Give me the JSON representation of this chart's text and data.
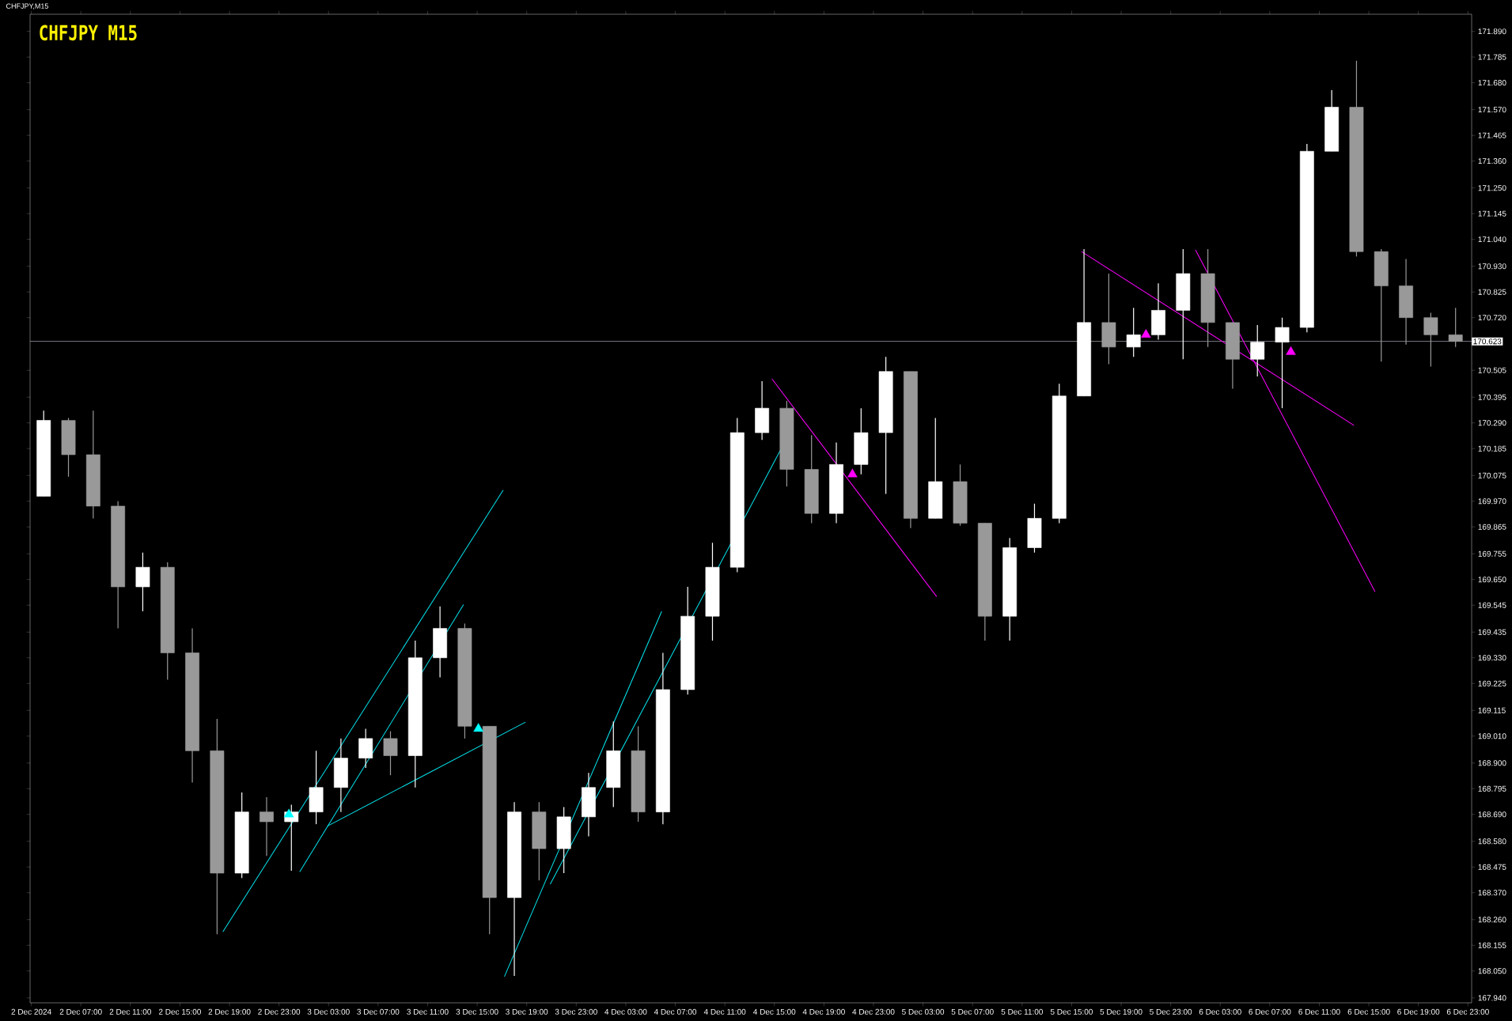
{
  "chart_data": {
    "type": "candlestick",
    "title": "CHFJPY M15",
    "annotations": [
      "CHFJPY,M15"
    ],
    "colors": [
      "#ffffff",
      "#999999",
      "#999999",
      "#999999",
      "#ffffff",
      "#999999",
      "#999999",
      "#999999",
      "#ffffff",
      "#999999",
      "#ffffff",
      "#ffffff",
      "#ffffff",
      "#ffffff",
      "#999999",
      "#ffffff",
      "#ffffff",
      "#999999",
      "#999999",
      "#ffffff",
      "#999999",
      "#ffffff",
      "#ffffff",
      "#ffffff",
      "#999999",
      "#ffffff",
      "#ffffff",
      "#ffffff",
      "#ffffff",
      "#ffffff",
      "#999999",
      "#999999",
      "#ffffff",
      "#ffffff",
      "#ffffff",
      "#999999",
      "#ffffff",
      "#999999",
      "#999999",
      "#ffffff",
      "#ffffff",
      "#ffffff",
      "#ffffff",
      "#999999",
      "#ffffff",
      "#ffffff",
      "#ffffff",
      "#999999",
      "#999999",
      "#ffffff",
      "#ffffff",
      "#ffffff",
      "#ffffff",
      "#999999",
      "#999999",
      "#999999",
      "#999999",
      "#999999"
    ],
    "x": [
      "2024-12-02T04:00",
      "2024-12-02T06:00",
      "2024-12-02T08:00",
      "2024-12-02T10:00",
      "2024-12-02T12:00",
      "2024-12-02T14:00",
      "2024-12-02T16:00",
      "2024-12-02T18:00",
      "2024-12-02T20:00",
      "2024-12-02T22:00",
      "2024-12-03T00:00",
      "2024-12-03T02:00",
      "2024-12-03T04:00",
      "2024-12-03T06:00",
      "2024-12-03T08:00",
      "2024-12-03T10:00",
      "2024-12-03T12:00",
      "2024-12-03T14:00",
      "2024-12-03T16:00",
      "2024-12-03T18:00",
      "2024-12-03T20:00",
      "2024-12-03T22:00",
      "2024-12-04T00:00",
      "2024-12-04T02:00",
      "2024-12-04T04:00",
      "2024-12-04T06:00",
      "2024-12-04T08:00",
      "2024-12-04T10:00",
      "2024-12-04T12:00",
      "2024-12-04T14:00",
      "2024-12-04T16:00",
      "2024-12-04T18:00",
      "2024-12-04T20:00",
      "2024-12-04T22:00",
      "2024-12-05T00:00",
      "2024-12-05T02:00",
      "2024-12-05T04:00",
      "2024-12-05T06:00",
      "2024-12-05T08:00",
      "2024-12-05T10:00",
      "2024-12-05T12:00",
      "2024-12-05T14:00",
      "2024-12-05T16:00",
      "2024-12-05T18:00",
      "2024-12-05T20:00",
      "2024-12-05T22:00",
      "2024-12-06T00:00",
      "2024-12-06T02:00",
      "2024-12-06T04:00",
      "2024-12-06T06:00",
      "2024-12-06T08:00",
      "2024-12-06T10:00",
      "2024-12-06T12:00",
      "2024-12-06T14:00",
      "2024-12-06T16:00",
      "2024-12-06T18:00",
      "2024-12-06T20:00",
      "2024-12-06T22:00"
    ],
    "ohlc": [
      [
        169.99,
        170.34,
        169.99,
        170.3
      ],
      [
        170.3,
        170.31,
        170.07,
        170.16
      ],
      [
        170.16,
        170.34,
        169.9,
        169.95
      ],
      [
        169.95,
        169.97,
        169.45,
        169.62
      ],
      [
        169.62,
        169.76,
        169.52,
        169.7
      ],
      [
        169.7,
        169.72,
        169.24,
        169.35
      ],
      [
        169.35,
        169.45,
        168.82,
        168.95
      ],
      [
        168.95,
        169.08,
        168.2,
        168.45
      ],
      [
        168.45,
        168.78,
        168.43,
        168.7
      ],
      [
        168.7,
        168.76,
        168.52,
        168.66
      ],
      [
        168.66,
        168.73,
        168.46,
        168.7
      ],
      [
        168.7,
        168.95,
        168.65,
        168.8
      ],
      [
        168.8,
        169.0,
        168.7,
        168.92
      ],
      [
        168.92,
        169.04,
        168.88,
        169.0
      ],
      [
        169.0,
        169.03,
        168.85,
        168.93
      ],
      [
        168.93,
        169.4,
        168.8,
        169.33
      ],
      [
        169.33,
        169.54,
        169.25,
        169.45
      ],
      [
        169.45,
        169.47,
        169.0,
        169.05
      ],
      [
        169.05,
        169.05,
        168.2,
        168.35
      ],
      [
        168.35,
        168.74,
        168.03,
        168.7
      ],
      [
        168.7,
        168.74,
        168.42,
        168.55
      ],
      [
        168.55,
        168.72,
        168.45,
        168.68
      ],
      [
        168.68,
        168.86,
        168.6,
        168.8
      ],
      [
        168.8,
        169.07,
        168.72,
        168.95
      ],
      [
        168.95,
        169.05,
        168.66,
        168.7
      ],
      [
        168.7,
        169.35,
        168.65,
        169.2
      ],
      [
        169.2,
        169.62,
        169.18,
        169.5
      ],
      [
        169.5,
        169.8,
        169.4,
        169.7
      ],
      [
        169.7,
        170.31,
        169.68,
        170.25
      ],
      [
        170.25,
        170.46,
        170.22,
        170.35
      ],
      [
        170.35,
        170.38,
        170.03,
        170.1
      ],
      [
        170.1,
        170.24,
        169.88,
        169.92
      ],
      [
        169.92,
        170.21,
        169.88,
        170.12
      ],
      [
        170.12,
        170.35,
        170.08,
        170.25
      ],
      [
        170.25,
        170.56,
        170.0,
        170.5
      ],
      [
        170.5,
        170.5,
        169.86,
        169.9
      ],
      [
        169.9,
        170.31,
        169.9,
        170.05
      ],
      [
        170.05,
        170.12,
        169.87,
        169.88
      ],
      [
        169.88,
        169.88,
        169.4,
        169.5
      ],
      [
        169.5,
        169.82,
        169.4,
        169.78
      ],
      [
        169.78,
        169.96,
        169.76,
        169.9
      ],
      [
        169.9,
        170.45,
        169.88,
        170.4
      ],
      [
        170.4,
        171.0,
        170.4,
        170.7
      ],
      [
        170.7,
        170.9,
        170.53,
        170.6
      ],
      [
        170.6,
        170.76,
        170.56,
        170.65
      ],
      [
        170.65,
        170.86,
        170.63,
        170.75
      ],
      [
        170.75,
        171.0,
        170.55,
        170.9
      ],
      [
        170.9,
        171.0,
        170.6,
        170.7
      ],
      [
        170.7,
        170.7,
        170.43,
        170.55
      ],
      [
        170.55,
        170.69,
        170.48,
        170.62
      ],
      [
        170.62,
        170.72,
        170.35,
        170.68
      ],
      [
        170.68,
        171.43,
        170.66,
        171.4
      ],
      [
        171.4,
        171.65,
        171.4,
        171.58
      ],
      [
        171.58,
        171.77,
        170.97,
        170.99
      ],
      [
        170.99,
        171.0,
        170.54,
        170.85
      ],
      [
        170.85,
        170.96,
        170.61,
        170.72
      ],
      [
        170.72,
        170.74,
        170.52,
        170.65
      ],
      [
        170.65,
        170.76,
        170.6,
        170.623
      ]
    ],
    "series": [
      {
        "type": "line",
        "color": "#00e5ee",
        "x": [
          "2024-12-02T18:28",
          "2024-12-03T17:06"
        ],
        "values": [
          168.21,
          170.015
        ]
      },
      {
        "type": "line",
        "color": "#00e5ee",
        "x": [
          "2024-12-03T00:40",
          "2024-12-03T13:54"
        ],
        "values": [
          168.455,
          169.547
        ]
      },
      {
        "type": "line",
        "color": "#00e5ee",
        "x": [
          "2024-12-03T02:54",
          "2024-12-03T18:54"
        ],
        "values": [
          168.642,
          169.067
        ]
      },
      {
        "type": "line",
        "color": "#00e5ee",
        "x": [
          "2024-12-03T17:12",
          "2024-12-04T05:54"
        ],
        "values": [
          168.027,
          169.52
        ]
      },
      {
        "type": "line",
        "color": "#00e5ee",
        "x": [
          "2024-12-03T20:54",
          "2024-12-04T15:30"
        ],
        "values": [
          168.405,
          170.18
        ]
      },
      {
        "type": "line",
        "color": "#ff00ff",
        "x": [
          "2024-12-04T14:48",
          "2024-12-05T04:06"
        ],
        "values": [
          170.47,
          169.58
        ]
      },
      {
        "type": "line",
        "color": "#ff00ff",
        "x": [
          "2024-12-05T15:48",
          "2024-12-06T13:48"
        ],
        "values": [
          170.99,
          170.28
        ]
      },
      {
        "type": "line",
        "color": "#ff00ff",
        "x": [
          "2024-12-06T01:00",
          "2024-12-06T15:30"
        ],
        "values": [
          170.997,
          169.6
        ]
      },
      {
        "type": "scatter",
        "marker": "triangle",
        "color": "#00ffff",
        "x": [
          "2024-12-02T23:48",
          "2024-12-03T15:06"
        ],
        "values": [
          168.69,
          169.04
        ]
      },
      {
        "type": "scatter",
        "marker": "triangle",
        "color": "#ff00ff",
        "x": [
          "2024-12-04T21:18",
          "2024-12-05T21:00",
          "2024-12-06T08:42"
        ],
        "values": [
          170.08,
          170.65,
          170.58
        ]
      }
    ],
    "ref_lines": [
      {
        "axis": "y",
        "value": 170.623,
        "label": "170.623",
        "color": "#a0a8b0"
      }
    ],
    "xlim": [
      "2024-12-02T02:54",
      "2024-12-06T23:18"
    ],
    "ylim": [
      167.92,
      171.96
    ],
    "xticks": [
      {
        "value": "2024-12-02T03:00",
        "label": "2 Dec 2024"
      },
      {
        "value": "2024-12-02T07:00",
        "label": "2 Dec 07:00"
      },
      {
        "value": "2024-12-02T11:00",
        "label": "2 Dec 11:00"
      },
      {
        "value": "2024-12-02T15:00",
        "label": "2 Dec 15:00"
      },
      {
        "value": "2024-12-02T19:00",
        "label": "2 Dec 19:00"
      },
      {
        "value": "2024-12-02T23:00",
        "label": "2 Dec 23:00"
      },
      {
        "value": "2024-12-03T03:00",
        "label": "3 Dec 03:00"
      },
      {
        "value": "2024-12-03T07:00",
        "label": "3 Dec 07:00"
      },
      {
        "value": "2024-12-03T11:00",
        "label": "3 Dec 11:00"
      },
      {
        "value": "2024-12-03T15:00",
        "label": "3 Dec 15:00"
      },
      {
        "value": "2024-12-03T19:00",
        "label": "3 Dec 19:00"
      },
      {
        "value": "2024-12-03T23:00",
        "label": "3 Dec 23:00"
      },
      {
        "value": "2024-12-04T03:00",
        "label": "4 Dec 03:00"
      },
      {
        "value": "2024-12-04T07:00",
        "label": "4 Dec 07:00"
      },
      {
        "value": "2024-12-04T11:00",
        "label": "4 Dec 11:00"
      },
      {
        "value": "2024-12-04T15:00",
        "label": "4 Dec 15:00"
      },
      {
        "value": "2024-12-04T19:00",
        "label": "4 Dec 19:00"
      },
      {
        "value": "2024-12-04T23:00",
        "label": "4 Dec 23:00"
      },
      {
        "value": "2024-12-05T03:00",
        "label": "5 Dec 03:00"
      },
      {
        "value": "2024-12-05T07:00",
        "label": "5 Dec 07:00"
      },
      {
        "value": "2024-12-05T11:00",
        "label": "5 Dec 11:00"
      },
      {
        "value": "2024-12-05T15:00",
        "label": "5 Dec 15:00"
      },
      {
        "value": "2024-12-05T19:00",
        "label": "5 Dec 19:00"
      },
      {
        "value": "2024-12-05T23:00",
        "label": "5 Dec 23:00"
      },
      {
        "value": "2024-12-06T03:00",
        "label": "6 Dec 03:00"
      },
      {
        "value": "2024-12-06T07:00",
        "label": "6 Dec 07:00"
      },
      {
        "value": "2024-12-06T11:00",
        "label": "6 Dec 11:00"
      },
      {
        "value": "2024-12-06T15:00",
        "label": "6 Dec 15:00"
      },
      {
        "value": "2024-12-06T19:00",
        "label": "6 Dec 19:00"
      },
      {
        "value": "2024-12-06T23:00",
        "label": "6 Dec 23:00"
      }
    ],
    "yticks": [
      {
        "value": 167.94,
        "label": "167.940"
      },
      {
        "value": 168.05,
        "label": "168.050"
      },
      168.155,
      {
        "value": 168.26,
        "label": "168.260"
      },
      {
        "value": 168.37,
        "label": "168.370"
      },
      168.475,
      {
        "value": 168.58,
        "label": "168.580"
      },
      {
        "value": 168.69,
        "label": "168.690"
      },
      168.795,
      {
        "value": 168.9,
        "label": "168.900"
      },
      {
        "value": 169.01,
        "label": "169.010"
      },
      169.115,
      169.225,
      {
        "value": 169.33,
        "label": "169.330"
      },
      169.435,
      169.545,
      {
        "value": 169.65,
        "label": "169.650"
      },
      169.755,
      169.865,
      {
        "value": 169.97,
        "label": "169.970"
      },
      170.075,
      170.185,
      {
        "value": 170.29,
        "label": "170.290"
      },
      170.395,
      170.505,
      {
        "value": 170.72,
        "label": "170.720"
      },
      170.825,
      {
        "value": 170.93,
        "label": "170.930"
      },
      {
        "value": 171.04,
        "label": "171.040"
      },
      171.145,
      {
        "value": 171.25,
        "label": "171.250"
      },
      {
        "value": 171.36,
        "label": "171.360"
      },
      171.465,
      {
        "value": 171.57,
        "label": "171.570"
      },
      {
        "value": 171.68,
        "label": "171.680"
      },
      171.785,
      {
        "value": 171.89,
        "label": "171.890"
      }
    ]
  }
}
